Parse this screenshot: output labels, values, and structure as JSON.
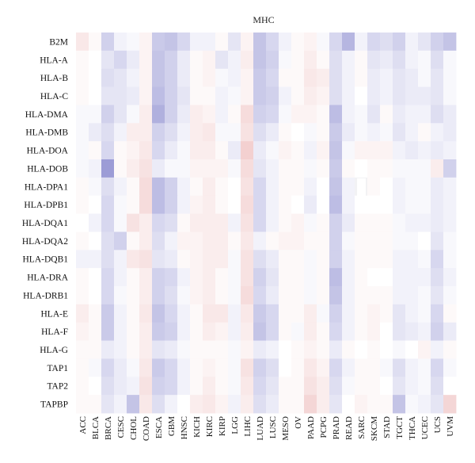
{
  "chart_data": {
    "type": "heatmap",
    "title": "MHC",
    "rows": [
      "B2M",
      "HLA-A",
      "HLA-B",
      "HLA-C",
      "HLA-DMA",
      "HLA-DMB",
      "HLA-DOA",
      "HLA-DOB",
      "HLA-DPA1",
      "HLA-DPB1",
      "HLA-DQA1",
      "HLA-DQA2",
      "HLA-DQB1",
      "HLA-DRA",
      "HLA-DRB1",
      "HLA-E",
      "HLA-F",
      "HLA-G",
      "TAP1",
      "TAP2",
      "TAPBP"
    ],
    "columns": [
      "ACC",
      "BLCA",
      "BRCA",
      "CESC",
      "CHOL",
      "COAD",
      "ESCA",
      "GBM",
      "HNSC",
      "KICH",
      "KIRC",
      "KIRP",
      "LGG",
      "LIHC",
      "LUAD",
      "LUSC",
      "MESO",
      "OV",
      "PAAD",
      "PCPG",
      "PRAD",
      "READ",
      "SARC",
      "SKCM",
      "STAD",
      "TGCT",
      "THCA",
      "UCEC",
      "UCS",
      "UVM"
    ],
    "value_range": [
      -1,
      1
    ],
    "color_scale": {
      "negative": "#7b7bc8",
      "zero": "#ffffff",
      "positive": "#e08a8a"
    },
    "values": [
      [
        0.2,
        0.05,
        -0.35,
        -0.1,
        -0.05,
        0.1,
        -0.4,
        -0.45,
        -0.3,
        -0.1,
        -0.1,
        0.05,
        -0.2,
        0.1,
        -0.45,
        -0.3,
        -0.1,
        0.05,
        0.1,
        -0.05,
        -0.3,
        -0.55,
        -0.1,
        -0.3,
        -0.25,
        -0.35,
        -0.1,
        -0.2,
        -0.35,
        -0.45
      ],
      [
        0.05,
        0.0,
        -0.2,
        -0.3,
        -0.15,
        0.1,
        -0.45,
        -0.35,
        -0.15,
        0.05,
        0.1,
        -0.2,
        -0.1,
        0.15,
        -0.45,
        -0.35,
        -0.05,
        0.05,
        0.15,
        0.05,
        -0.25,
        -0.1,
        0.05,
        -0.2,
        -0.15,
        -0.25,
        -0.1,
        -0.05,
        -0.25,
        -0.05
      ],
      [
        0.05,
        0.0,
        -0.25,
        -0.2,
        -0.1,
        0.1,
        -0.45,
        -0.35,
        -0.15,
        0.05,
        0.1,
        -0.05,
        -0.1,
        0.1,
        -0.4,
        -0.3,
        0.05,
        0.05,
        0.2,
        0.15,
        -0.25,
        -0.1,
        0.05,
        -0.15,
        -0.1,
        -0.2,
        -0.15,
        -0.05,
        -0.2,
        -0.05
      ],
      [
        0.05,
        0.0,
        -0.2,
        -0.2,
        -0.15,
        0.1,
        -0.5,
        -0.35,
        -0.2,
        0.05,
        0.05,
        -0.1,
        -0.05,
        0.1,
        -0.4,
        -0.35,
        -0.1,
        0.05,
        0.15,
        0.1,
        -0.25,
        -0.1,
        0.0,
        -0.15,
        -0.1,
        -0.2,
        -0.15,
        -0.15,
        -0.2,
        -0.05
      ],
      [
        -0.05,
        -0.05,
        -0.35,
        -0.2,
        -0.05,
        0.15,
        -0.6,
        -0.35,
        -0.15,
        0.15,
        0.1,
        -0.1,
        0.05,
        0.3,
        -0.35,
        -0.3,
        -0.05,
        0.1,
        0.1,
        0.05,
        -0.5,
        -0.1,
        -0.05,
        -0.2,
        0.05,
        -0.15,
        -0.1,
        -0.1,
        -0.25,
        -0.15
      ],
      [
        -0.05,
        -0.15,
        -0.25,
        -0.1,
        0.15,
        0.15,
        -0.35,
        -0.25,
        -0.1,
        0.15,
        0.2,
        -0.05,
        -0.05,
        0.25,
        -0.25,
        -0.15,
        0.05,
        0.0,
        -0.05,
        0.05,
        -0.4,
        -0.15,
        -0.05,
        -0.1,
        -0.05,
        -0.2,
        -0.1,
        0.05,
        -0.1,
        -0.15
      ],
      [
        -0.05,
        0.05,
        -0.3,
        0.05,
        0.1,
        0.2,
        -0.3,
        -0.15,
        -0.05,
        0.15,
        0.15,
        0.05,
        -0.15,
        0.4,
        -0.15,
        -0.05,
        0.1,
        0.05,
        -0.1,
        0.1,
        -0.45,
        -0.05,
        0.1,
        0.1,
        0.1,
        -0.1,
        -0.15,
        -0.1,
        -0.15,
        -0.1
      ],
      [
        -0.05,
        -0.1,
        -0.75,
        0.05,
        0.15,
        0.25,
        -0.15,
        -0.05,
        -0.05,
        0.1,
        0.1,
        0.1,
        -0.05,
        0.3,
        -0.2,
        -0.1,
        0.05,
        0.05,
        -0.05,
        0.05,
        -0.4,
        0.05,
        0.0,
        0.05,
        0.05,
        -0.05,
        -0.05,
        -0.05,
        0.15,
        -0.35
      ],
      [
        0.05,
        -0.05,
        -0.25,
        -0.1,
        0.05,
        0.3,
        -0.5,
        -0.35,
        -0.1,
        0.05,
        0.15,
        0.05,
        0.0,
        0.25,
        -0.3,
        -0.1,
        0.05,
        0.05,
        -0.1,
        0.0,
        -0.45,
        -0.1,
        0.0,
        0.05,
        0.0,
        -0.1,
        -0.05,
        -0.05,
        -0.15,
        -0.1
      ],
      [
        0.05,
        0.0,
        -0.3,
        -0.05,
        0.05,
        0.3,
        -0.5,
        -0.35,
        -0.1,
        0.1,
        0.15,
        0.05,
        0.0,
        0.3,
        -0.3,
        -0.1,
        0.05,
        0.0,
        -0.15,
        0.0,
        -0.5,
        -0.1,
        0.0,
        0.0,
        0.0,
        -0.1,
        -0.05,
        -0.05,
        -0.15,
        -0.1
      ],
      [
        0.0,
        -0.1,
        -0.3,
        -0.05,
        0.25,
        0.15,
        -0.3,
        -0.25,
        0.05,
        0.15,
        0.15,
        0.15,
        -0.1,
        0.25,
        -0.3,
        -0.1,
        0.05,
        0.1,
        -0.05,
        0.05,
        -0.35,
        -0.15,
        0.05,
        0.05,
        0.05,
        -0.05,
        -0.1,
        -0.1,
        -0.15,
        -0.1
      ],
      [
        0.05,
        0.0,
        -0.25,
        -0.35,
        0.05,
        0.15,
        -0.25,
        -0.1,
        0.1,
        0.1,
        0.15,
        0.15,
        0.05,
        0.2,
        -0.1,
        0.05,
        0.1,
        0.1,
        0.05,
        0.05,
        -0.35,
        -0.05,
        0.05,
        0.05,
        0.05,
        -0.05,
        -0.05,
        0.0,
        -0.2,
        -0.05
      ],
      [
        -0.1,
        -0.1,
        -0.25,
        -0.1,
        0.2,
        0.25,
        -0.2,
        -0.15,
        0.05,
        0.1,
        0.15,
        0.15,
        -0.05,
        0.25,
        -0.25,
        -0.15,
        0.05,
        0.05,
        -0.05,
        0.05,
        -0.35,
        -0.1,
        0.05,
        0.05,
        0.05,
        -0.1,
        -0.1,
        -0.05,
        -0.3,
        -0.05
      ],
      [
        0.05,
        0.0,
        -0.3,
        -0.1,
        0.05,
        0.15,
        -0.35,
        -0.3,
        -0.1,
        0.1,
        0.15,
        0.05,
        -0.05,
        0.25,
        -0.35,
        -0.2,
        0.05,
        0.05,
        -0.05,
        0.05,
        -0.5,
        -0.1,
        0.05,
        0.0,
        0.0,
        -0.1,
        -0.1,
        -0.1,
        -0.25,
        -0.1
      ],
      [
        0.05,
        0.0,
        -0.3,
        -0.05,
        0.05,
        0.15,
        -0.35,
        -0.25,
        -0.05,
        0.1,
        0.15,
        0.05,
        -0.05,
        0.3,
        -0.3,
        -0.15,
        0.05,
        0.05,
        -0.05,
        0.05,
        -0.45,
        -0.1,
        0.05,
        0.05,
        0.05,
        -0.1,
        -0.1,
        -0.05,
        -0.2,
        -0.05
      ],
      [
        0.15,
        0.05,
        -0.4,
        -0.1,
        0.05,
        0.2,
        -0.45,
        -0.3,
        -0.1,
        0.05,
        0.2,
        0.2,
        -0.1,
        0.2,
        -0.4,
        -0.3,
        0.05,
        0.05,
        0.15,
        -0.05,
        -0.35,
        -0.1,
        0.05,
        0.1,
        0.05,
        -0.2,
        -0.1,
        -0.05,
        -0.3,
        0.05
      ],
      [
        0.1,
        0.05,
        -0.4,
        -0.1,
        0.05,
        0.15,
        -0.4,
        -0.35,
        -0.1,
        0.05,
        0.15,
        0.1,
        -0.1,
        0.15,
        -0.45,
        -0.3,
        0.05,
        -0.05,
        0.15,
        0.05,
        -0.3,
        -0.1,
        0.05,
        0.1,
        0.0,
        -0.2,
        -0.15,
        -0.1,
        -0.35,
        -0.15
      ],
      [
        0.05,
        0.05,
        -0.15,
        -0.1,
        0.05,
        0.15,
        -0.2,
        -0.15,
        -0.05,
        0.05,
        0.05,
        0.05,
        -0.05,
        0.1,
        -0.15,
        -0.1,
        0.0,
        0.05,
        0.1,
        0.05,
        -0.15,
        0.05,
        0.0,
        0.05,
        0.0,
        -0.05,
        0.0,
        0.1,
        -0.1,
        0.05
      ],
      [
        0.05,
        -0.05,
        -0.3,
        -0.15,
        -0.05,
        0.2,
        -0.4,
        -0.3,
        -0.1,
        0.05,
        0.1,
        0.05,
        -0.05,
        0.25,
        -0.35,
        -0.25,
        0.0,
        0.05,
        0.2,
        0.1,
        -0.3,
        -0.1,
        0.05,
        0.05,
        -0.05,
        -0.25,
        -0.1,
        -0.05,
        -0.3,
        -0.05
      ],
      [
        0.05,
        0.0,
        -0.25,
        -0.15,
        -0.1,
        0.25,
        -0.35,
        -0.3,
        -0.1,
        0.05,
        0.15,
        0.05,
        -0.05,
        0.2,
        -0.3,
        -0.2,
        0.05,
        0.05,
        0.25,
        0.15,
        -0.25,
        -0.05,
        0.05,
        0.05,
        0.0,
        -0.2,
        -0.1,
        -0.05,
        -0.25,
        0.0
      ],
      [
        0.05,
        0.05,
        -0.2,
        -0.1,
        -0.45,
        0.2,
        -0.25,
        -0.1,
        0.0,
        0.15,
        0.2,
        0.1,
        -0.1,
        0.15,
        -0.25,
        -0.15,
        0.05,
        0.05,
        0.35,
        0.15,
        -0.2,
        0.0,
        0.1,
        0.05,
        0.05,
        -0.45,
        -0.05,
        -0.1,
        -0.2,
        0.35
      ]
    ],
    "missing_cells": [
      [
        8,
        22
      ]
    ]
  }
}
